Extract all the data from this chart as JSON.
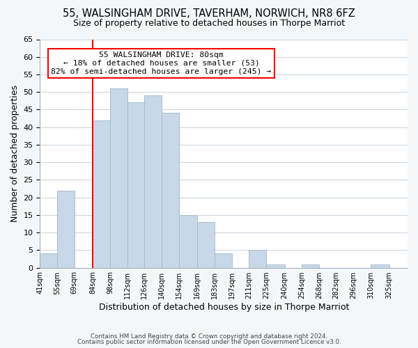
{
  "title": "55, WALSINGHAM DRIVE, TAVERHAM, NORWICH, NR8 6FZ",
  "subtitle": "Size of property relative to detached houses in Thorpe Marriot",
  "xlabel": "Distribution of detached houses by size in Thorpe Marriot",
  "ylabel": "Number of detached properties",
  "bar_edges": [
    41,
    55,
    69,
    84,
    98,
    112,
    126,
    140,
    154,
    169,
    183,
    197,
    211,
    225,
    240,
    254,
    268,
    282,
    296,
    310,
    325
  ],
  "bar_heights": [
    4,
    22,
    0,
    42,
    51,
    47,
    49,
    44,
    15,
    13,
    4,
    0,
    5,
    1,
    0,
    1,
    0,
    0,
    0,
    1,
    0
  ],
  "bar_color": "#c8d8e8",
  "bar_edge_color": "#a8bece",
  "vline_x": 84,
  "vline_color": "red",
  "ylim": [
    0,
    65
  ],
  "yticks": [
    0,
    5,
    10,
    15,
    20,
    25,
    30,
    35,
    40,
    45,
    50,
    55,
    60,
    65
  ],
  "annotation_title": "55 WALSINGHAM DRIVE: 80sqm",
  "annotation_line1": "← 18% of detached houses are smaller (53)",
  "annotation_line2": "82% of semi-detached houses are larger (245) →",
  "footer1": "Contains HM Land Registry data © Crown copyright and database right 2024.",
  "footer2": "Contains public sector information licensed under the Open Government Licence v3.0.",
  "background_color": "#f4f7fa",
  "plot_background_color": "#ffffff",
  "grid_color": "#c8d4de",
  "title_fontsize": 10.5,
  "subtitle_fontsize": 9,
  "tick_labels": [
    "41sqm",
    "55sqm",
    "69sqm",
    "84sqm",
    "98sqm",
    "112sqm",
    "126sqm",
    "140sqm",
    "154sqm",
    "169sqm",
    "183sqm",
    "197sqm",
    "211sqm",
    "225sqm",
    "240sqm",
    "254sqm",
    "268sqm",
    "282sqm",
    "296sqm",
    "310sqm",
    "325sqm"
  ]
}
